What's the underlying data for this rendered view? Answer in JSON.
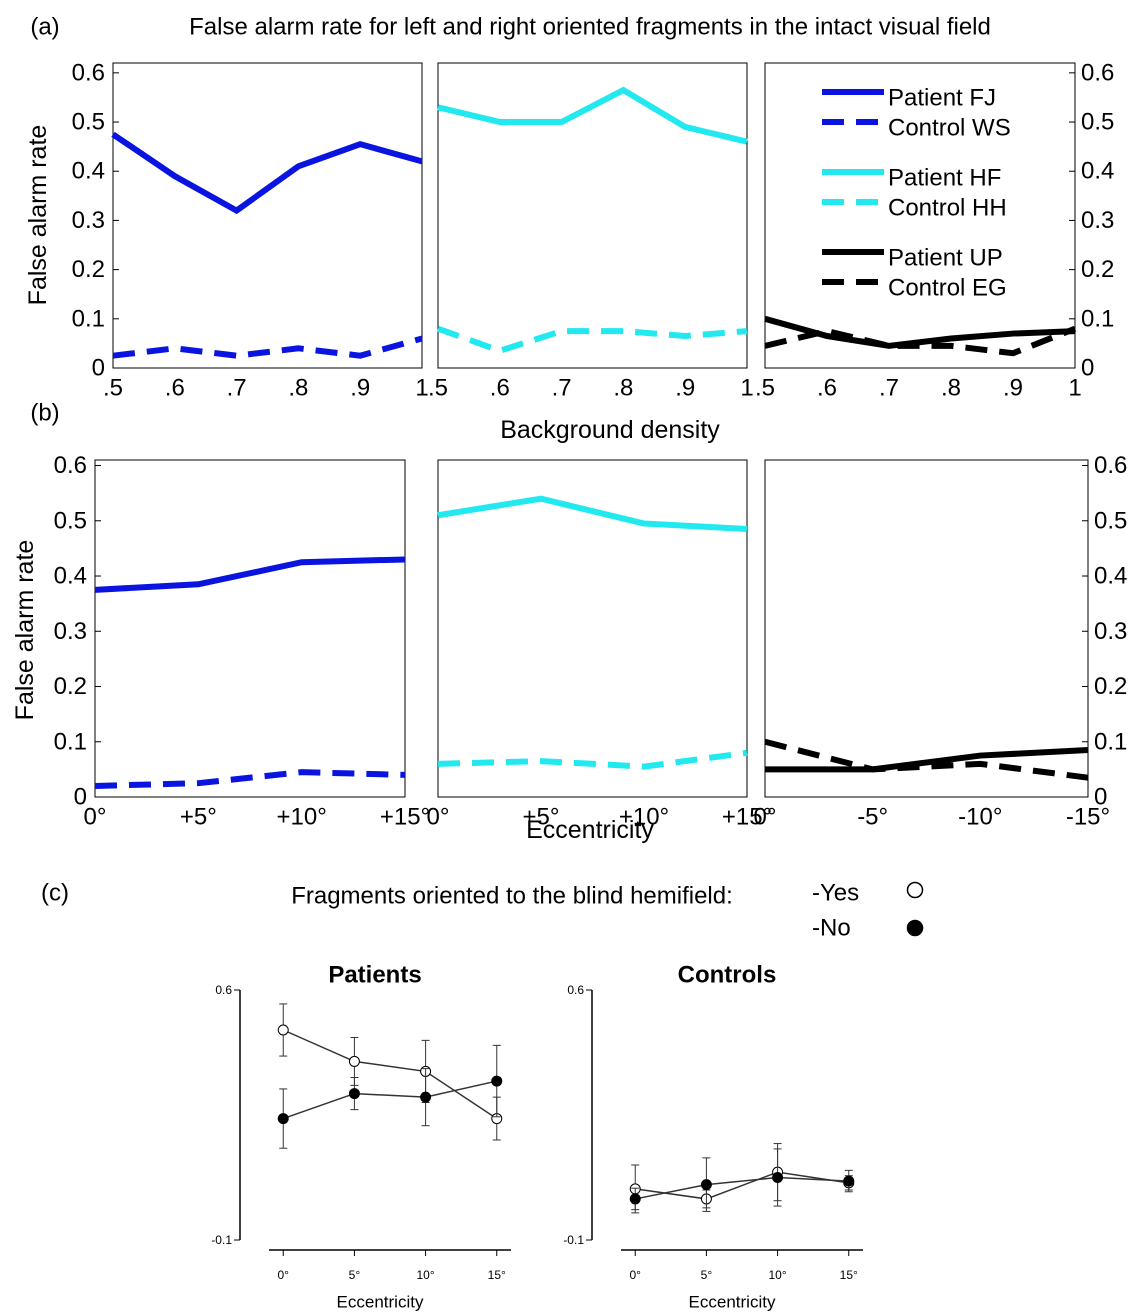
{
  "chart_data": [
    {
      "type": "line",
      "panel_label": "(a)",
      "title": "False alarm rate for left and right oriented fragments in the intact visual field",
      "ylabel": "False alarm rate",
      "categories": [
        ".5",
        ".6",
        ".7",
        ".8",
        ".9",
        "1"
      ],
      "series": [
        {
          "name": "Patient FJ",
          "color": "#0a14e0",
          "dashed": false,
          "values": [
            0.475,
            0.39,
            0.32,
            0.41,
            0.455,
            0.42
          ]
        },
        {
          "name": "Control WS",
          "color": "#0a14e0",
          "dashed": true,
          "values": [
            0.025,
            0.04,
            0.025,
            0.04,
            0.025,
            0.06
          ]
        }
      ],
      "ylim": [
        0,
        0.62
      ],
      "yticks": [
        0,
        0.1,
        0.2,
        0.3,
        0.4,
        0.5,
        0.6
      ],
      "ytick_side": "left"
    },
    {
      "type": "line",
      "xlabel": "Background density",
      "categories": [
        ".5",
        ".6",
        ".7",
        ".8",
        ".9",
        "1"
      ],
      "series": [
        {
          "name": "Patient HF",
          "color": "#22e8f0",
          "dashed": false,
          "values": [
            0.53,
            0.5,
            0.5,
            0.565,
            0.49,
            0.46
          ]
        },
        {
          "name": "Control HH",
          "color": "#22e8f0",
          "dashed": true,
          "values": [
            0.08,
            0.035,
            0.075,
            0.075,
            0.065,
            0.075
          ]
        }
      ],
      "ylim": [
        0,
        0.62
      ]
    },
    {
      "type": "line",
      "legend": "upper right",
      "categories": [
        ".5",
        ".6",
        ".7",
        ".8",
        ".9",
        "1"
      ],
      "series": [
        {
          "name": "Patient UP",
          "color": "#000000",
          "dashed": false,
          "values": [
            0.1,
            0.065,
            0.045,
            0.06,
            0.07,
            0.075
          ]
        },
        {
          "name": "Control EG",
          "color": "#000000",
          "dashed": true,
          "values": [
            0.045,
            0.075,
            0.045,
            0.045,
            0.03,
            0.08
          ]
        }
      ],
      "ylim": [
        0,
        0.62
      ],
      "yticks": [
        0,
        0.1,
        0.2,
        0.3,
        0.4,
        0.5,
        0.6
      ],
      "ytick_side": "right"
    },
    {
      "type": "line",
      "panel_label": "(b)",
      "ylabel": "False alarm rate",
      "categories": [
        "0°",
        "+5°",
        "+10°",
        "+15°"
      ],
      "series": [
        {
          "color": "#0a14e0",
          "dashed": false,
          "values": [
            0.375,
            0.385,
            0.425,
            0.43
          ]
        },
        {
          "color": "#0a14e0",
          "dashed": true,
          "values": [
            0.02,
            0.025,
            0.045,
            0.04
          ]
        }
      ],
      "ylim": [
        0,
        0.61
      ],
      "yticks": [
        0,
        0.1,
        0.2,
        0.3,
        0.4,
        0.5,
        0.6
      ],
      "ytick_side": "left"
    },
    {
      "type": "line",
      "xlabel": "Eccentricity",
      "categories": [
        "0°",
        "+5°",
        "+10°",
        "+15°"
      ],
      "series": [
        {
          "color": "#22e8f0",
          "dashed": false,
          "values": [
            0.51,
            0.54,
            0.495,
            0.485
          ]
        },
        {
          "color": "#22e8f0",
          "dashed": true,
          "values": [
            0.06,
            0.065,
            0.055,
            0.08
          ]
        }
      ],
      "ylim": [
        0,
        0.61
      ]
    },
    {
      "type": "line",
      "categories": [
        "0°",
        "-5°",
        "-10°",
        "-15°"
      ],
      "series": [
        {
          "color": "#000000",
          "dashed": false,
          "values": [
            0.05,
            0.05,
            0.075,
            0.085
          ]
        },
        {
          "color": "#000000",
          "dashed": true,
          "values": [
            0.1,
            0.05,
            0.06,
            0.035
          ]
        }
      ],
      "ylim": [
        0,
        0.61
      ],
      "yticks": [
        0,
        0.1,
        0.2,
        0.3,
        0.4,
        0.5,
        0.6
      ],
      "ytick_side": "right"
    },
    {
      "type": "errorbar",
      "panel_label": "(c)",
      "title": "Patients",
      "xlabel": "Eccentricity",
      "legend_title": "Fragments oriented to the blind hemifield:",
      "x": [
        0,
        5,
        10,
        15
      ],
      "series": [
        {
          "name": "-Yes",
          "marker": "open",
          "color": "#000000",
          "values": [
            0.488,
            0.4,
            0.372,
            0.24
          ],
          "errors": [
            0.073,
            0.067,
            0.087,
            0.06
          ]
        },
        {
          "name": "-No",
          "marker": "filled",
          "color": "#000000",
          "values": [
            0.24,
            0.31,
            0.3,
            0.345
          ],
          "errors": [
            0.083,
            0.045,
            0.08,
            0.1
          ]
        }
      ],
      "xlim": [
        -1,
        16
      ],
      "xticks": [
        {
          "value": 0,
          "label": "0°"
        },
        {
          "value": 5,
          "label": "5°"
        },
        {
          "value": 10,
          "label": "10°"
        },
        {
          "value": 15,
          "label": "15°"
        }
      ],
      "ylim": [
        -0.1,
        0.6
      ],
      "yticks": [
        -0.1,
        0.6
      ]
    },
    {
      "type": "errorbar",
      "title": "Controls",
      "xlabel": "Eccentricity",
      "x": [
        0,
        5,
        10,
        15
      ],
      "series": [
        {
          "marker": "open",
          "color": "#000000",
          "values": [
            0.043,
            0.015,
            0.09,
            0.06
          ],
          "errors": [
            0.067,
            0.025,
            0.08,
            0.02
          ]
        },
        {
          "marker": "filled",
          "color": "#000000",
          "values": [
            0.015,
            0.055,
            0.075,
            0.065
          ],
          "errors": [
            0.03,
            0.075,
            0.08,
            0.03
          ]
        }
      ],
      "xlim": [
        -1,
        16
      ],
      "xticks": [
        {
          "value": 0,
          "label": "0°"
        },
        {
          "value": 5,
          "label": "5°"
        },
        {
          "value": 10,
          "label": "10°"
        },
        {
          "value": 15,
          "label": "15°"
        }
      ],
      "ylim": [
        -0.1,
        0.6
      ],
      "yticks": [
        -0.1,
        0.6
      ]
    }
  ]
}
